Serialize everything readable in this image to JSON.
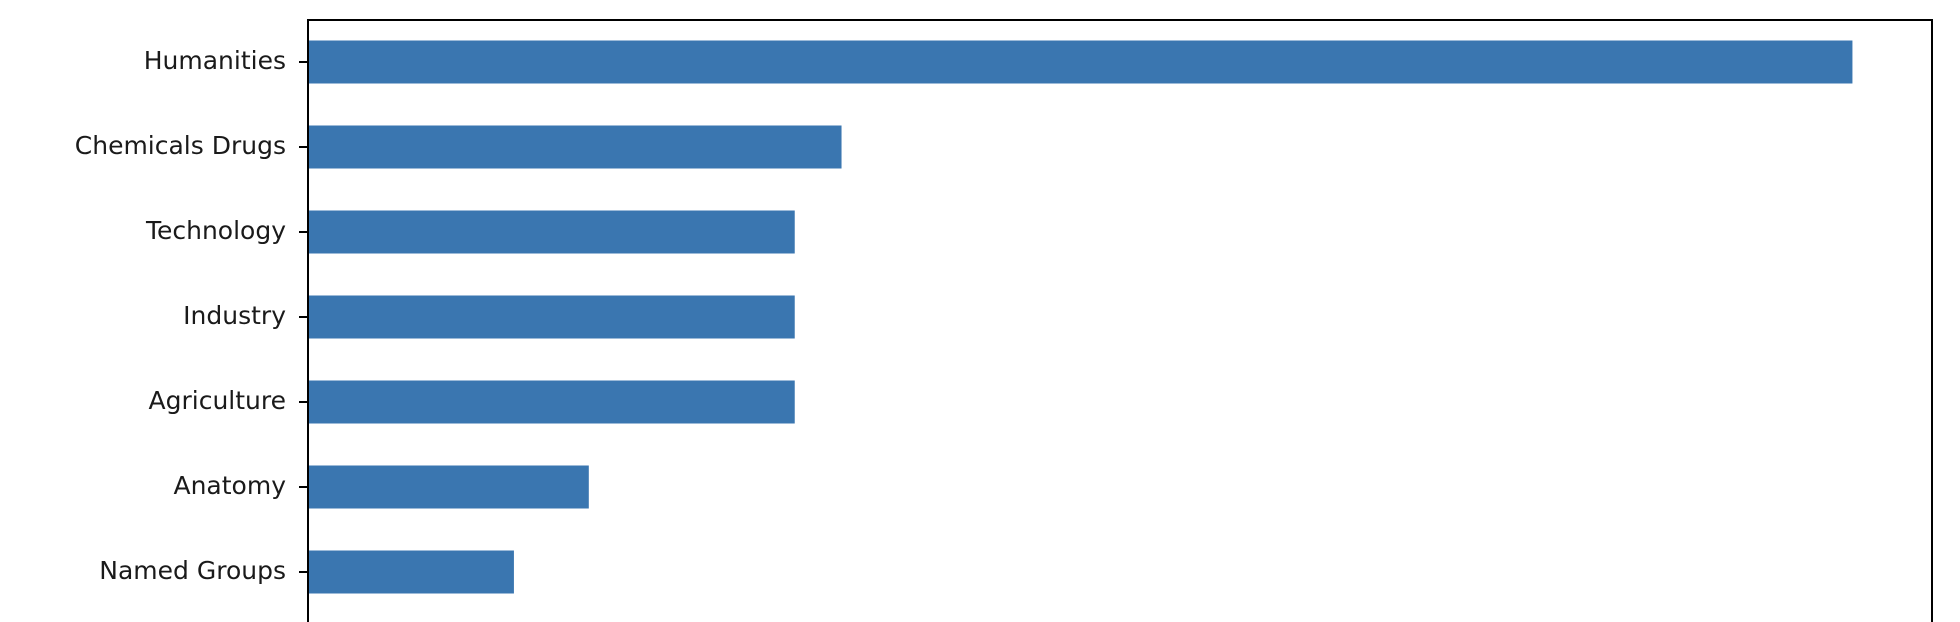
{
  "chart_data": {
    "type": "bar",
    "orientation": "horizontal",
    "categories": [
      "Humanities",
      "Chemicals Drugs",
      "Technology",
      "Industry",
      "Agriculture",
      "Anatomy",
      "Named Groups"
    ],
    "values": [
      33,
      11.4,
      10.4,
      10.4,
      10.4,
      6,
      4.4
    ],
    "xlim": [
      0,
      34.7
    ],
    "bar_color": "#3a76b0",
    "grid": false,
    "title": "",
    "xlabel": "",
    "ylabel": ""
  }
}
